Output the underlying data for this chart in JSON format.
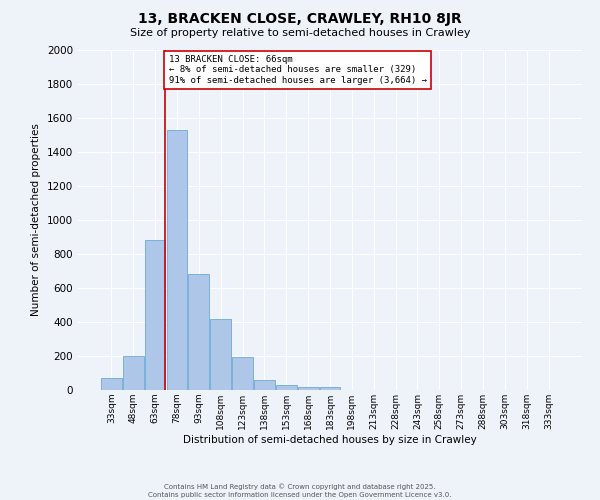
{
  "title1": "13, BRACKEN CLOSE, CRAWLEY, RH10 8JR",
  "title2": "Size of property relative to semi-detached houses in Crawley",
  "xlabel": "Distribution of semi-detached houses by size in Crawley",
  "ylabel": "Number of semi-detached properties",
  "bar_labels": [
    "33sqm",
    "48sqm",
    "63sqm",
    "78sqm",
    "93sqm",
    "108sqm",
    "123sqm",
    "138sqm",
    "153sqm",
    "168sqm",
    "183sqm",
    "198sqm",
    "213sqm",
    "228sqm",
    "243sqm",
    "258sqm",
    "273sqm",
    "288sqm",
    "303sqm",
    "318sqm",
    "333sqm"
  ],
  "bar_values": [
    70,
    200,
    880,
    1530,
    680,
    420,
    195,
    60,
    30,
    20,
    15,
    0,
    0,
    0,
    0,
    0,
    0,
    0,
    0,
    0,
    0
  ],
  "bar_color": "#aec6e8",
  "bar_edge_color": "#5a9fd4",
  "vline_x": 2.47,
  "ylim": [
    0,
    2000
  ],
  "yticks": [
    0,
    200,
    400,
    600,
    800,
    1000,
    1200,
    1400,
    1600,
    1800,
    2000
  ],
  "annotation_title": "13 BRACKEN CLOSE: 66sqm",
  "annotation_line1": "← 8% of semi-detached houses are smaller (329)",
  "annotation_line2": "91% of semi-detached houses are larger (3,664) →",
  "annotation_box_color": "#ffffff",
  "annotation_box_edge": "#cc0000",
  "vline_color": "#cc0000",
  "background_color": "#eef2f9",
  "grid_color": "#ffffff",
  "footer": "Contains HM Land Registry data © Crown copyright and database right 2025.\nContains public sector information licensed under the Open Government Licence v3.0."
}
